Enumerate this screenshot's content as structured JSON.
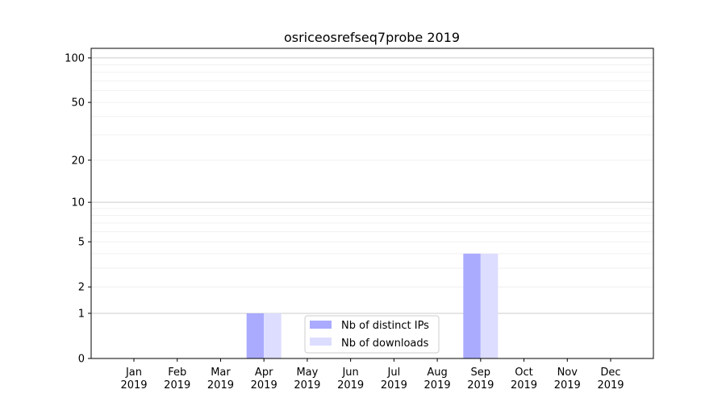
{
  "chart_data": {
    "type": "bar",
    "title": "osriceosrefseq7probe 2019",
    "xlabel": "",
    "ylabel": "",
    "y_scale": "log(1+y)",
    "ylim": [
      0,
      116
    ],
    "y_ticks": [
      0,
      1,
      2,
      5,
      10,
      20,
      50,
      100
    ],
    "grid": true,
    "legend_position": "lower-center",
    "categories": [
      "Jan\n2019",
      "Feb\n2019",
      "Mar\n2019",
      "Apr\n2019",
      "May\n2019",
      "Jun\n2019",
      "Jul\n2019",
      "Aug\n2019",
      "Sep\n2019",
      "Oct\n2019",
      "Nov\n2019",
      "Dec\n2019"
    ],
    "series": [
      {
        "name": "Nb of distinct IPs",
        "color": "#aaaaff",
        "values": [
          0,
          0,
          0,
          1,
          0,
          0,
          0,
          0,
          4,
          0,
          0,
          0
        ]
      },
      {
        "name": "Nb of downloads",
        "color": "#ddddff",
        "values": [
          0,
          0,
          0,
          1,
          0,
          0,
          0,
          0,
          4,
          0,
          0,
          0
        ]
      }
    ]
  }
}
